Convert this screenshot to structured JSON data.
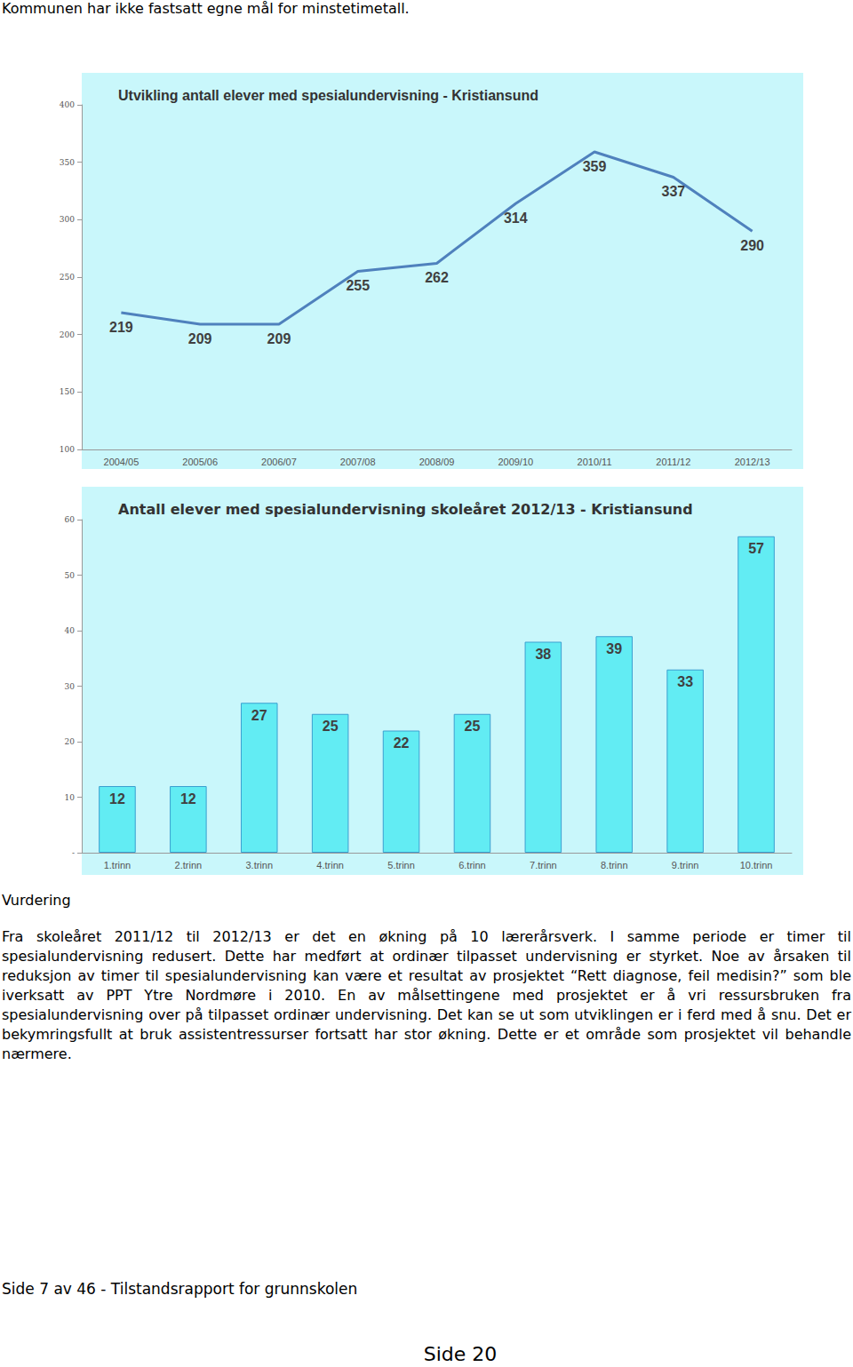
{
  "intro": "Kommunen har ikke fastsatt egne mål for minstetimetall.",
  "chart_data": [
    {
      "type": "line",
      "title": "Utvikling antall elever med spesialundervisning - Kristiansund",
      "categories": [
        "2004/05",
        "2005/06",
        "2006/07",
        "2007/08",
        "2008/09",
        "2009/10",
        "2010/11",
        "2011/12",
        "2012/13"
      ],
      "values": [
        219,
        209,
        209,
        255,
        262,
        314,
        359,
        337,
        290
      ],
      "color": "#4f81bd",
      "ylim": [
        100,
        400
      ],
      "yticks": [
        100,
        150,
        200,
        250,
        300,
        350,
        400
      ],
      "grid": false,
      "data_labels": true
    },
    {
      "type": "bar",
      "title": "Antall elever med spesialundervisning skoleåret 2012/13 - Kristiansund",
      "categories": [
        "1.trinn",
        "2.trinn",
        "3.trinn",
        "4.trinn",
        "5.trinn",
        "6.trinn",
        "7.trinn",
        "8.trinn",
        "9.trinn",
        "10.trinn"
      ],
      "values": [
        12,
        12,
        27,
        25,
        22,
        25,
        38,
        39,
        33,
        57
      ],
      "color": "#62ecf3",
      "ylim": [
        0,
        60
      ],
      "yticks": [
        {
          "value": 0,
          "label": "-"
        },
        10,
        20,
        30,
        40,
        50,
        60
      ],
      "grid": false,
      "data_labels": true
    }
  ],
  "section": {
    "heading": "Vurdering",
    "paragraph": "Fra skoleåret 2011/12 til 2012/13 er det en økning på 10 lærerårsverk. I samme periode er timer til spesialundervisning redusert. Dette har medført at ordinær tilpasset undervisning er styrket. Noe av årsaken til reduksjon av timer til spesialundervisning kan være et resultat av prosjektet “Rett diagnose, feil medisin?” som ble iverksatt av PPT Ytre Nordmøre i 2010. En av målsettingene med prosjektet er å vri ressursbruken fra spesialundervisning over på tilpasset ordinær undervisning. Det kan se ut som utviklingen er i ferd med å snu. Det er bekymringsfullt at bruk assistentressurser fortsatt har stor økning. Dette er et område som prosjektet vil behandle nærmere."
  },
  "footer": "Side 7 av 46 - Tilstandsrapport for grunnskolen",
  "page_number": "Side 20"
}
